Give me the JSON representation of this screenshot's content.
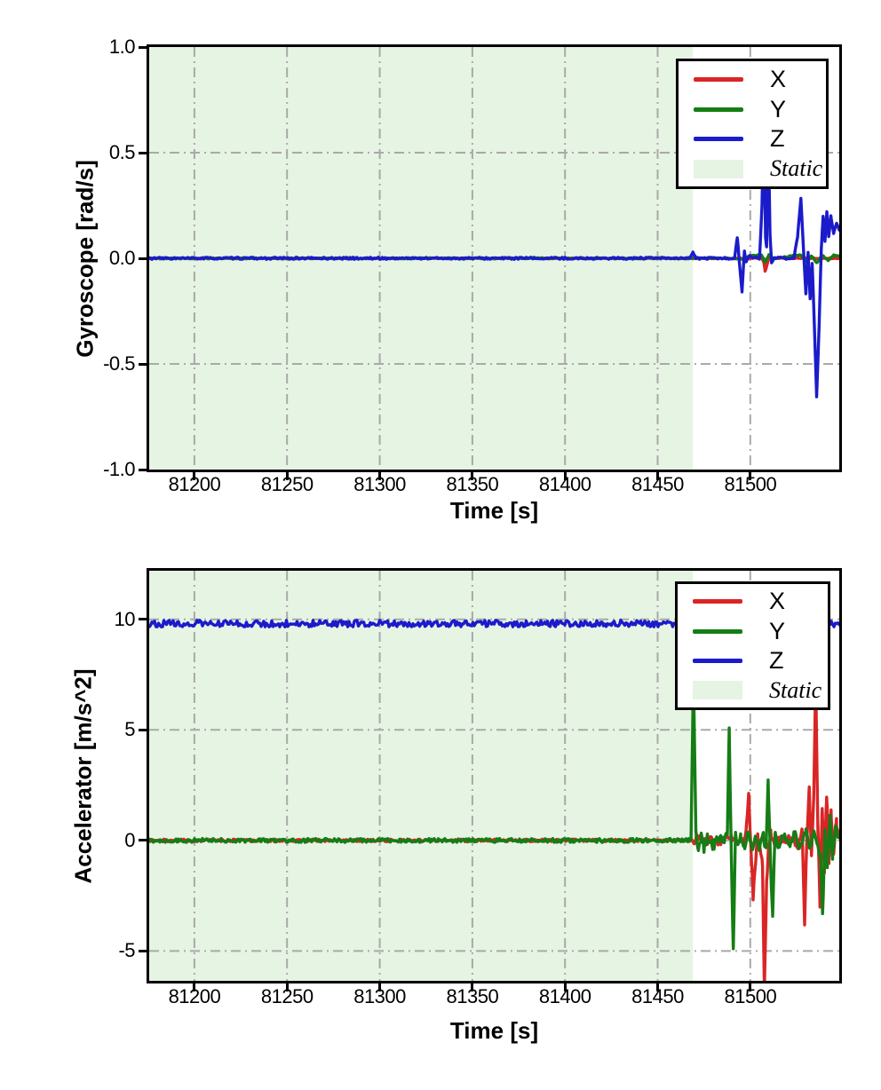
{
  "figure": {
    "background": "#ffffff"
  },
  "chart_data": [
    {
      "type": "line",
      "title": "",
      "xlabel": "Time [s]",
      "ylabel": "Gyroscope [rad/s]",
      "xlim": [
        81175.6,
        81548.0
      ],
      "ylim": [
        -1.0,
        1.0
      ],
      "xticks": {
        "values": [
          81200,
          81250,
          81300,
          81350,
          81400,
          81450,
          81500
        ],
        "labels": [
          "81200",
          "81250",
          "81300",
          "81350",
          "81400",
          "81450",
          "81500"
        ]
      },
      "yticks": {
        "values": [
          1.0,
          0.5,
          0.0,
          -0.5,
          -1.0
        ],
        "labels": [
          "1.0",
          "0.5",
          "0.0",
          "-0.5",
          "-1.0"
        ]
      },
      "grid": {
        "visible": true,
        "style": "dash-dot",
        "color": "#a9a9a9"
      },
      "static_region": {
        "label": "Static",
        "from": 81175.6,
        "to": 81469,
        "color": "#e6f4e3"
      },
      "legend": {
        "position": "upper right",
        "entries": [
          {
            "label": "X",
            "color": "#da2525",
            "type": "line",
            "italic": false
          },
          {
            "label": "Y",
            "color": "#157d15",
            "type": "line",
            "italic": false
          },
          {
            "label": "Z",
            "color": "#1b1bcb",
            "type": "line",
            "italic": false
          },
          {
            "label": "Static",
            "color": "#e6f4e3",
            "type": "patch",
            "italic": true
          }
        ]
      },
      "series": [
        {
          "name": "X",
          "color": "#da2525",
          "seed": 11,
          "noise": [
            {
              "from": 81175.6,
              "to": 81548,
              "amp": 0.002
            }
          ],
          "points": [
            [
              81175.6,
              0
            ],
            [
              81504,
              0
            ],
            [
              81506,
              0
            ],
            [
              81507.2,
              -0.015
            ],
            [
              81508,
              -0.06
            ],
            [
              81508.8,
              -0.04
            ],
            [
              81510,
              0
            ],
            [
              81548,
              0
            ]
          ]
        },
        {
          "name": "Y",
          "color": "#157d15",
          "seed": 22,
          "noise": [
            {
              "from": 81175.6,
              "to": 81548,
              "amp": 0.003
            }
          ],
          "points": [
            [
              81175.6,
              0
            ],
            [
              81469,
              0
            ],
            [
              81470,
              0.012
            ],
            [
              81471.5,
              0
            ],
            [
              81495,
              0
            ],
            [
              81497,
              -0.015
            ],
            [
              81499,
              0.01
            ],
            [
              81506,
              0.018
            ],
            [
              81508,
              -0.02
            ],
            [
              81510,
              0.015
            ],
            [
              81512,
              0
            ],
            [
              81527,
              0.015
            ],
            [
              81530,
              -0.015
            ],
            [
              81533,
              0.01
            ],
            [
              81536,
              -0.02
            ],
            [
              81539,
              0.015
            ],
            [
              81542,
              -0.01
            ],
            [
              81545,
              0.015
            ],
            [
              81548,
              0.01
            ]
          ]
        },
        {
          "name": "Z",
          "color": "#1b1bcb",
          "seed": 33,
          "noise": [
            {
              "from": 81175.6,
              "to": 81548,
              "amp": 0.005
            }
          ],
          "points": [
            [
              81175.6,
              0
            ],
            [
              81467.5,
              0
            ],
            [
              81469,
              0.03
            ],
            [
              81470.5,
              0
            ],
            [
              81491.5,
              0
            ],
            [
              81493,
              0.1
            ],
            [
              81494.2,
              -0.03
            ],
            [
              81495.5,
              -0.16
            ],
            [
              81496.8,
              0.03
            ],
            [
              81497.8,
              -0.02
            ],
            [
              81499,
              0.01
            ],
            [
              81505,
              0
            ],
            [
              81506.3,
              0.25
            ],
            [
              81507.3,
              0.67
            ],
            [
              81508.2,
              0.1
            ],
            [
              81508.8,
              0.05
            ],
            [
              81509.6,
              0.67
            ],
            [
              81510.6,
              0.12
            ],
            [
              81511.5,
              -0.02
            ],
            [
              81513,
              0
            ],
            [
              81523.5,
              0
            ],
            [
              81525.5,
              0.1
            ],
            [
              81527.3,
              0.28
            ],
            [
              81528.8,
              0.03
            ],
            [
              81530,
              -0.17
            ],
            [
              81531.2,
              0.03
            ],
            [
              81532.3,
              -0.19
            ],
            [
              81533.4,
              -0.02
            ],
            [
              81534.2,
              -0.22
            ],
            [
              81535.8,
              -0.66
            ],
            [
              81537.2,
              -0.3
            ],
            [
              81538.3,
              0.05
            ],
            [
              81539.3,
              0.2
            ],
            [
              81540.3,
              0.08
            ],
            [
              81541.3,
              0.22
            ],
            [
              81542.3,
              0.1
            ],
            [
              81543.5,
              0.2
            ],
            [
              81545,
              0.12
            ],
            [
              81546.5,
              0.17
            ],
            [
              81548,
              0.13
            ]
          ]
        }
      ]
    },
    {
      "type": "line",
      "title": "",
      "xlabel": "Time [s]",
      "ylabel": "Accelerator [m/s^2]",
      "xlim": [
        81175.6,
        81548.0
      ],
      "ylim": [
        -6.35,
        12.2
      ],
      "xticks": {
        "values": [
          81200,
          81250,
          81300,
          81350,
          81400,
          81450,
          81500
        ],
        "labels": [
          "81200",
          "81250",
          "81300",
          "81350",
          "81400",
          "81450",
          "81500"
        ]
      },
      "yticks": {
        "values": [
          10,
          5,
          0,
          -5
        ],
        "labels": [
          "10",
          "5",
          "0",
          "-5"
        ]
      },
      "grid": {
        "visible": true,
        "style": "dash-dot",
        "color": "#a9a9a9"
      },
      "static_region": {
        "label": "Static",
        "from": 81175.6,
        "to": 81469,
        "color": "#e6f4e3"
      },
      "legend": {
        "position": "upper right",
        "entries": [
          {
            "label": "X",
            "color": "#da2525",
            "type": "line",
            "italic": false
          },
          {
            "label": "Y",
            "color": "#157d15",
            "type": "line",
            "italic": false
          },
          {
            "label": "Z",
            "color": "#1b1bcb",
            "type": "line",
            "italic": false
          },
          {
            "label": "Static",
            "color": "#e6f4e3",
            "type": "patch",
            "italic": true
          }
        ]
      },
      "series": [
        {
          "name": "X",
          "color": "#da2525",
          "seed": 44,
          "noise": [
            {
              "from": 81175.6,
              "to": 81469,
              "amp": 0.06
            },
            {
              "from": 81469,
              "to": 81548,
              "amp": 0.2
            }
          ],
          "points": [
            [
              81175.6,
              0
            ],
            [
              81469,
              0
            ],
            [
              81471,
              0.1
            ],
            [
              81480,
              -0.05
            ],
            [
              81490,
              0.05
            ],
            [
              81496.5,
              0
            ],
            [
              81498,
              0.8
            ],
            [
              81499.2,
              2.1
            ],
            [
              81500.3,
              -0.4
            ],
            [
              81501.5,
              -2.5
            ],
            [
              81502.8,
              -1.0
            ],
            [
              81504,
              0.3
            ],
            [
              81505.5,
              -0.4
            ],
            [
              81506.6,
              -1.2
            ],
            [
              81507.6,
              -6.6
            ],
            [
              81508.8,
              -2.0
            ],
            [
              81509.8,
              -0.4
            ],
            [
              81511,
              0.3
            ],
            [
              81513,
              -0.1
            ],
            [
              81520,
              0.1
            ],
            [
              81526,
              -0.2
            ],
            [
              81528,
              0.4
            ],
            [
              81529.3,
              -3.7
            ],
            [
              81530.6,
              0.3
            ],
            [
              81531.8,
              2.3
            ],
            [
              81533,
              -0.6
            ],
            [
              81534.2,
              1.8
            ],
            [
              81535.3,
              7.2
            ],
            [
              81536.5,
              0.5
            ],
            [
              81537.6,
              -2.9
            ],
            [
              81538.8,
              1.6
            ],
            [
              81540,
              -1.3
            ],
            [
              81541.2,
              2.1
            ],
            [
              81542.4,
              -0.9
            ],
            [
              81543.6,
              1.2
            ],
            [
              81545,
              -0.5
            ],
            [
              81546.5,
              0.8
            ],
            [
              81548,
              0.2
            ]
          ]
        },
        {
          "name": "Y",
          "color": "#157d15",
          "seed": 55,
          "noise": [
            {
              "from": 81175.6,
              "to": 81469,
              "amp": 0.09
            },
            {
              "from": 81469,
              "to": 81548,
              "amp": 0.25
            }
          ],
          "points": [
            [
              81175.6,
              0
            ],
            [
              81468,
              0
            ],
            [
              81469.3,
              7.6
            ],
            [
              81470.6,
              0.4
            ],
            [
              81472,
              -0.5
            ],
            [
              81473.5,
              0.3
            ],
            [
              81475,
              -0.3
            ],
            [
              81477,
              0.2
            ],
            [
              81480,
              -0.2
            ],
            [
              81483,
              0.15
            ],
            [
              81486,
              -0.15
            ],
            [
              81487.6,
              0.3
            ],
            [
              81488.6,
              5.15
            ],
            [
              81489.7,
              -0.5
            ],
            [
              81490.8,
              -5.15
            ],
            [
              81492,
              0.3
            ],
            [
              81493.5,
              -0.3
            ],
            [
              81495,
              0.2
            ],
            [
              81497,
              -0.25
            ],
            [
              81499,
              0.3
            ],
            [
              81501,
              -0.3
            ],
            [
              81503,
              0.2
            ],
            [
              81505,
              -0.25
            ],
            [
              81507,
              0.3
            ],
            [
              81508.5,
              -0.4
            ],
            [
              81509.6,
              2.65
            ],
            [
              81510.7,
              -0.4
            ],
            [
              81512,
              -3.5
            ],
            [
              81513.3,
              0.4
            ],
            [
              81515,
              -0.2
            ],
            [
              81518,
              0.2
            ],
            [
              81521,
              -0.2
            ],
            [
              81524,
              0.25
            ],
            [
              81527,
              -0.3
            ],
            [
              81530,
              0.3
            ],
            [
              81532,
              -0.4
            ],
            [
              81534,
              0.4
            ],
            [
              81536,
              -0.3
            ],
            [
              81537.8,
              -0.6
            ],
            [
              81539,
              -3.5
            ],
            [
              81540.3,
              0.6
            ],
            [
              81541.6,
              -1.1
            ],
            [
              81543,
              0.9
            ],
            [
              81544.4,
              -0.7
            ],
            [
              81546,
              0.5
            ],
            [
              81548,
              0.1
            ]
          ]
        },
        {
          "name": "Z",
          "color": "#1b1bcb",
          "seed": 66,
          "noise": [
            {
              "from": 81175.6,
              "to": 81548,
              "amp": 0.15
            }
          ],
          "points": [
            [
              81175.6,
              9.81
            ],
            [
              81548,
              9.81
            ]
          ]
        }
      ]
    }
  ]
}
